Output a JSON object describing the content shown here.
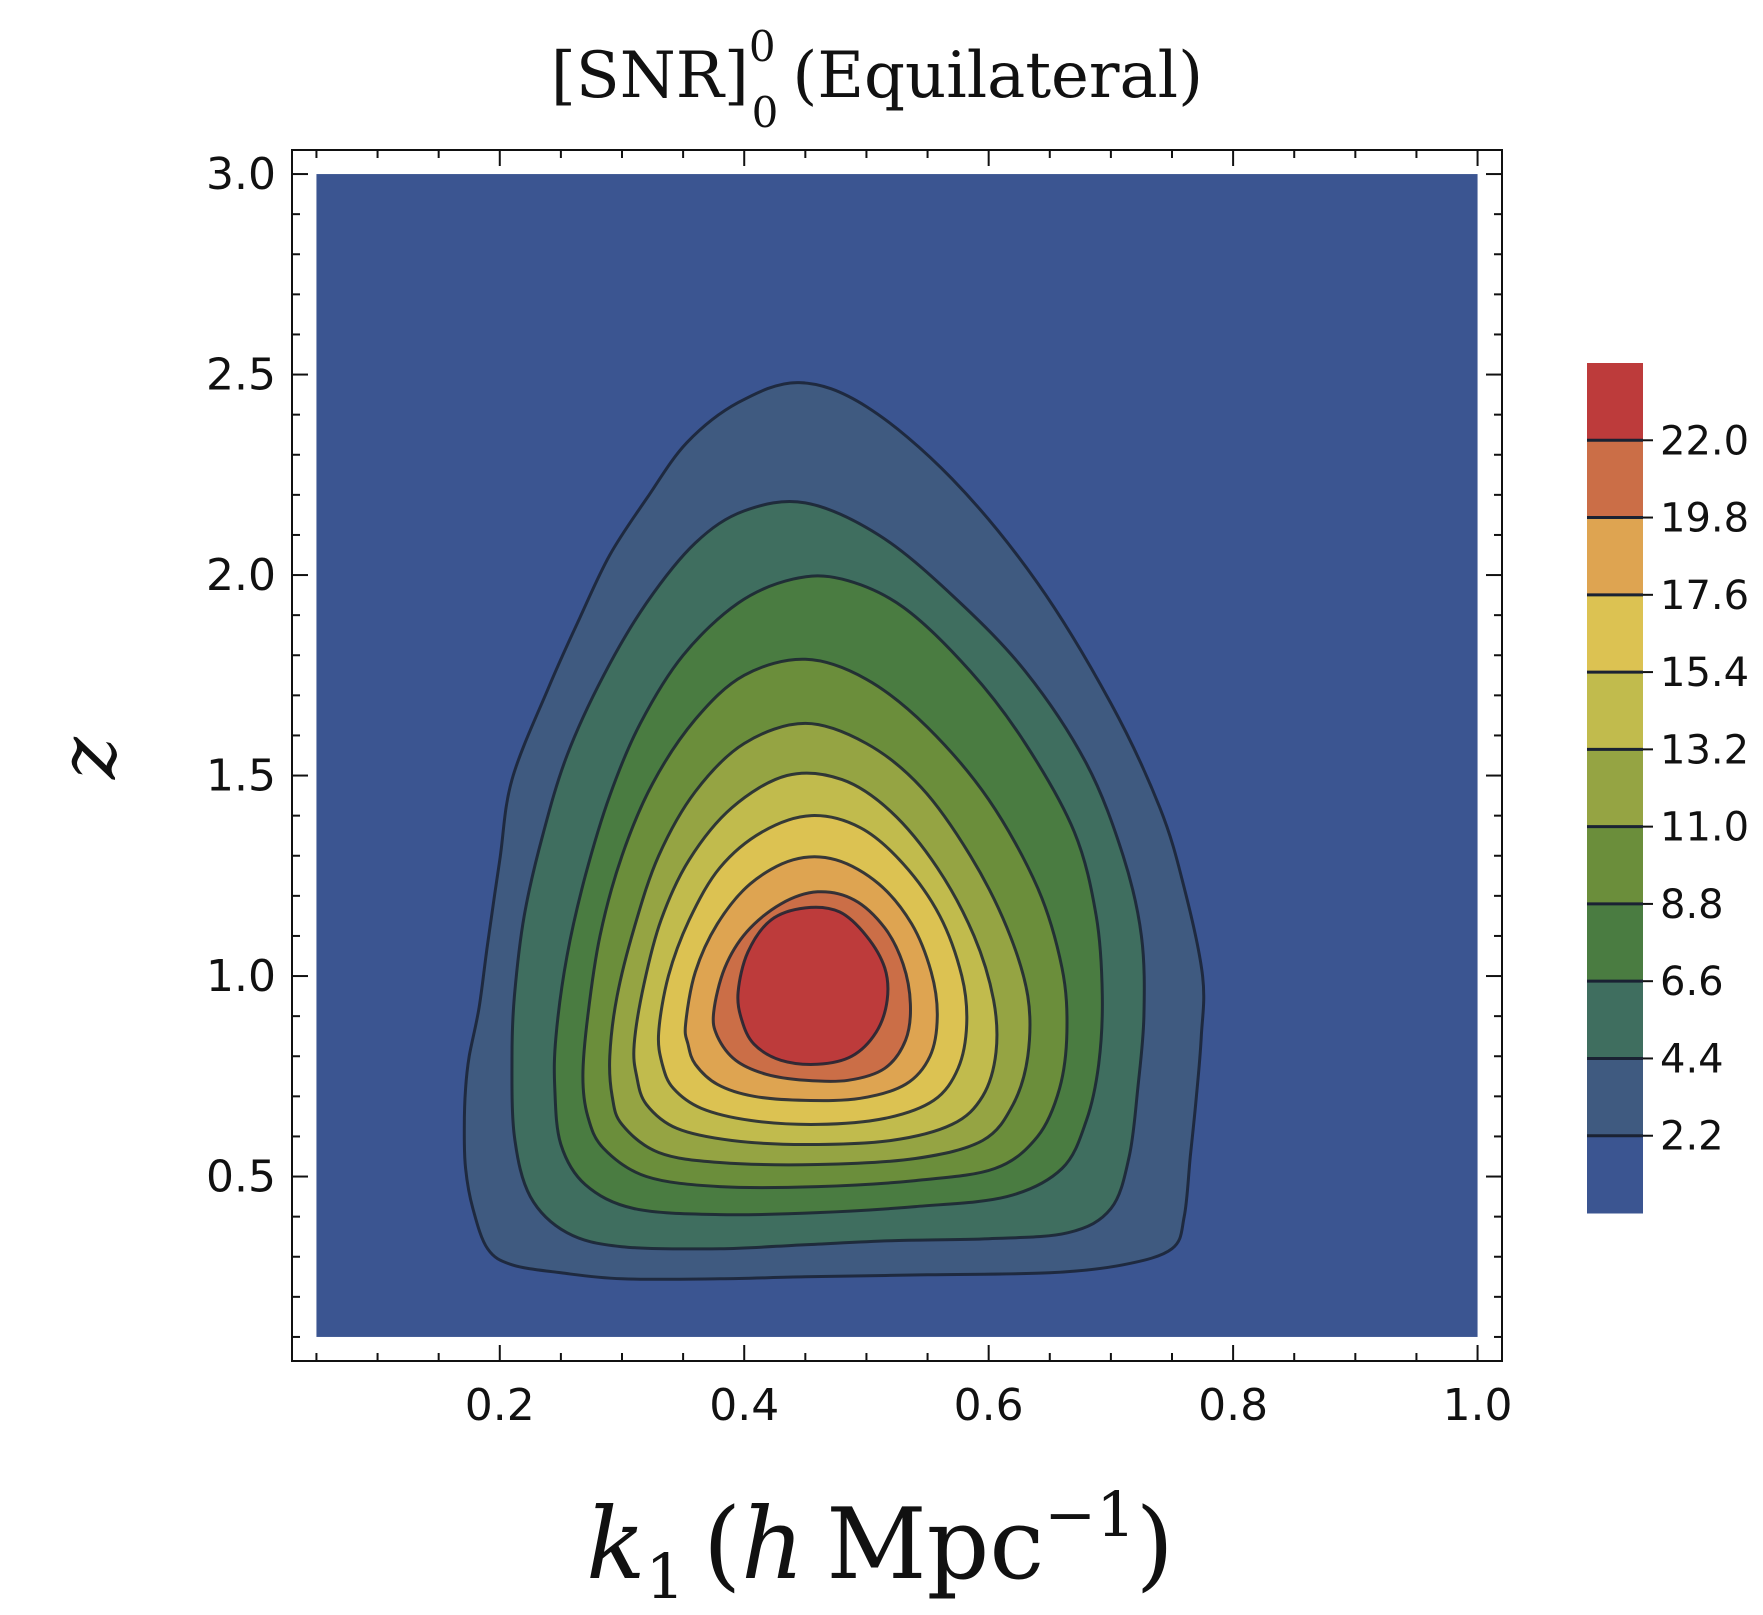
{
  "chart_data": {
    "type": "contour",
    "title": "[SNR]⁰₀ (Equilateral)",
    "title_main": "[SNR]",
    "title_sup": "0",
    "title_sub": "0",
    "title_rest": "(Equilateral)",
    "xlabel": "k₁ (h Mpc⁻¹)",
    "xlabel_base": "k",
    "xlabel_sub": "1",
    "xlabel_open": "(",
    "xlabel_h": "h",
    "xlabel_unit": "Mpc",
    "xlabel_sup": "−1",
    "xlabel_close": ")",
    "ylabel": "z",
    "xlim": [
      0.03,
      1.02
    ],
    "ylim": [
      0.04,
      3.06
    ],
    "x_ticks": [
      0.2,
      0.4,
      0.6,
      0.8,
      1.0
    ],
    "x_tick_labels": [
      "0.2",
      "0.4",
      "0.6",
      "0.8",
      "1.0"
    ],
    "y_ticks": [
      0.5,
      1.0,
      1.5,
      2.0,
      2.5,
      3.0
    ],
    "y_tick_labels": [
      "0.5",
      "1.0",
      "1.5",
      "2.0",
      "2.5",
      "3.0"
    ],
    "data_extent": {
      "x": [
        0.05,
        1.0
      ],
      "y": [
        0.1,
        3.0
      ]
    },
    "peak": {
      "k1": 0.49,
      "z": 1.01,
      "max_snr": 23.5
    },
    "contour_levels": [
      2.2,
      4.4,
      6.6,
      8.8,
      11.0,
      13.2,
      15.4,
      17.6,
      19.8,
      22.0
    ],
    "colorbar_tick_labels": [
      "2.2",
      "4.4",
      "6.6",
      "8.8",
      "11.0",
      "13.2",
      "15.4",
      "17.6",
      "19.8",
      "22.0"
    ],
    "fill_colors": [
      "#3b5591",
      "#3f5a80",
      "#3f6e5f",
      "#4a7c41",
      "#6b8e3b",
      "#95a443",
      "#c1bb4d",
      "#dcc252",
      "#dea451",
      "#cb6e47",
      "#bd3b3b"
    ],
    "line_color": "#1a2233",
    "grid": false,
    "legend": "colorbar-right",
    "contours": [
      {
        "level": 2.2,
        "points": [
          [
            0.171,
            0.62
          ],
          [
            0.172,
            0.72
          ],
          [
            0.175,
            0.8
          ],
          [
            0.183,
            0.92
          ],
          [
            0.19,
            1.08
          ],
          [
            0.2,
            1.29
          ],
          [
            0.21,
            1.49
          ],
          [
            0.24,
            1.72
          ],
          [
            0.265,
            1.89
          ],
          [
            0.29,
            2.05
          ],
          [
            0.32,
            2.19
          ],
          [
            0.353,
            2.33
          ],
          [
            0.395,
            2.43
          ],
          [
            0.445,
            2.48
          ],
          [
            0.5,
            2.42
          ],
          [
            0.57,
            2.24
          ],
          [
            0.64,
            1.98
          ],
          [
            0.7,
            1.68
          ],
          [
            0.74,
            1.42
          ],
          [
            0.76,
            1.22
          ],
          [
            0.775,
            1.0
          ],
          [
            0.774,
            0.85
          ],
          [
            0.77,
            0.7
          ],
          [
            0.765,
            0.55
          ],
          [
            0.76,
            0.4
          ],
          [
            0.75,
            0.32
          ],
          [
            0.71,
            0.28
          ],
          [
            0.65,
            0.26
          ],
          [
            0.55,
            0.255
          ],
          [
            0.45,
            0.25
          ],
          [
            0.38,
            0.245
          ],
          [
            0.3,
            0.245
          ],
          [
            0.25,
            0.26
          ],
          [
            0.21,
            0.28
          ],
          [
            0.19,
            0.32
          ],
          [
            0.178,
            0.42
          ],
          [
            0.172,
            0.52
          ]
        ]
      },
      {
        "level": 4.4,
        "points": [
          [
            0.21,
            0.8
          ],
          [
            0.212,
            0.95
          ],
          [
            0.22,
            1.15
          ],
          [
            0.235,
            1.35
          ],
          [
            0.255,
            1.55
          ],
          [
            0.285,
            1.75
          ],
          [
            0.32,
            1.93
          ],
          [
            0.36,
            2.08
          ],
          [
            0.4,
            2.16
          ],
          [
            0.45,
            2.18
          ],
          [
            0.51,
            2.1
          ],
          [
            0.57,
            1.95
          ],
          [
            0.63,
            1.76
          ],
          [
            0.68,
            1.53
          ],
          [
            0.71,
            1.3
          ],
          [
            0.725,
            1.1
          ],
          [
            0.727,
            0.9
          ],
          [
            0.722,
            0.72
          ],
          [
            0.715,
            0.55
          ],
          [
            0.7,
            0.42
          ],
          [
            0.665,
            0.36
          ],
          [
            0.6,
            0.345
          ],
          [
            0.52,
            0.34
          ],
          [
            0.45,
            0.33
          ],
          [
            0.38,
            0.32
          ],
          [
            0.3,
            0.325
          ],
          [
            0.255,
            0.36
          ],
          [
            0.225,
            0.45
          ],
          [
            0.212,
            0.6
          ]
        ]
      },
      {
        "level": 6.6,
        "points": [
          [
            0.245,
            0.72
          ],
          [
            0.246,
            0.85
          ],
          [
            0.255,
            1.05
          ],
          [
            0.27,
            1.25
          ],
          [
            0.29,
            1.45
          ],
          [
            0.315,
            1.63
          ],
          [
            0.35,
            1.8
          ],
          [
            0.395,
            1.93
          ],
          [
            0.44,
            1.99
          ],
          [
            0.48,
            1.99
          ],
          [
            0.53,
            1.92
          ],
          [
            0.585,
            1.76
          ],
          [
            0.63,
            1.58
          ],
          [
            0.67,
            1.36
          ],
          [
            0.688,
            1.15
          ],
          [
            0.693,
            0.95
          ],
          [
            0.69,
            0.78
          ],
          [
            0.68,
            0.64
          ],
          [
            0.66,
            0.52
          ],
          [
            0.615,
            0.45
          ],
          [
            0.54,
            0.425
          ],
          [
            0.46,
            0.41
          ],
          [
            0.38,
            0.405
          ],
          [
            0.31,
            0.42
          ],
          [
            0.27,
            0.48
          ],
          [
            0.25,
            0.58
          ]
        ]
      },
      {
        "level": 8.8,
        "points": [
          [
            0.268,
            0.75
          ],
          [
            0.272,
            0.9
          ],
          [
            0.282,
            1.1
          ],
          [
            0.3,
            1.3
          ],
          [
            0.325,
            1.48
          ],
          [
            0.36,
            1.64
          ],
          [
            0.4,
            1.75
          ],
          [
            0.45,
            1.79
          ],
          [
            0.5,
            1.74
          ],
          [
            0.55,
            1.62
          ],
          [
            0.6,
            1.44
          ],
          [
            0.64,
            1.22
          ],
          [
            0.66,
            1.02
          ],
          [
            0.664,
            0.86
          ],
          [
            0.658,
            0.72
          ],
          [
            0.64,
            0.6
          ],
          [
            0.605,
            0.52
          ],
          [
            0.54,
            0.49
          ],
          [
            0.46,
            0.475
          ],
          [
            0.38,
            0.475
          ],
          [
            0.32,
            0.5
          ],
          [
            0.285,
            0.57
          ],
          [
            0.272,
            0.65
          ]
        ]
      },
      {
        "level": 11.0,
        "points": [
          [
            0.29,
            0.8
          ],
          [
            0.296,
            0.95
          ],
          [
            0.31,
            1.12
          ],
          [
            0.33,
            1.3
          ],
          [
            0.36,
            1.46
          ],
          [
            0.4,
            1.58
          ],
          [
            0.45,
            1.63
          ],
          [
            0.5,
            1.58
          ],
          [
            0.545,
            1.47
          ],
          [
            0.585,
            1.3
          ],
          [
            0.615,
            1.12
          ],
          [
            0.632,
            0.95
          ],
          [
            0.632,
            0.8
          ],
          [
            0.62,
            0.68
          ],
          [
            0.595,
            0.59
          ],
          [
            0.54,
            0.545
          ],
          [
            0.46,
            0.53
          ],
          [
            0.38,
            0.535
          ],
          [
            0.33,
            0.56
          ],
          [
            0.3,
            0.63
          ],
          [
            0.292,
            0.7
          ]
        ]
      },
      {
        "level": 13.2,
        "points": [
          [
            0.31,
            0.83
          ],
          [
            0.318,
            0.98
          ],
          [
            0.332,
            1.14
          ],
          [
            0.355,
            1.29
          ],
          [
            0.39,
            1.42
          ],
          [
            0.435,
            1.5
          ],
          [
            0.48,
            1.49
          ],
          [
            0.52,
            1.41
          ],
          [
            0.558,
            1.27
          ],
          [
            0.588,
            1.1
          ],
          [
            0.604,
            0.94
          ],
          [
            0.606,
            0.81
          ],
          [
            0.595,
            0.7
          ],
          [
            0.57,
            0.63
          ],
          [
            0.52,
            0.59
          ],
          [
            0.45,
            0.58
          ],
          [
            0.39,
            0.59
          ],
          [
            0.345,
            0.62
          ],
          [
            0.32,
            0.68
          ],
          [
            0.312,
            0.75
          ]
        ]
      },
      {
        "level": 15.4,
        "points": [
          [
            0.33,
            0.86
          ],
          [
            0.338,
            1.0
          ],
          [
            0.355,
            1.14
          ],
          [
            0.38,
            1.27
          ],
          [
            0.415,
            1.36
          ],
          [
            0.455,
            1.4
          ],
          [
            0.495,
            1.37
          ],
          [
            0.53,
            1.28
          ],
          [
            0.56,
            1.15
          ],
          [
            0.578,
            1.0
          ],
          [
            0.582,
            0.88
          ],
          [
            0.575,
            0.77
          ],
          [
            0.555,
            0.69
          ],
          [
            0.515,
            0.645
          ],
          [
            0.46,
            0.63
          ],
          [
            0.405,
            0.64
          ],
          [
            0.365,
            0.67
          ],
          [
            0.342,
            0.72
          ],
          [
            0.333,
            0.78
          ]
        ]
      },
      {
        "level": 17.6,
        "points": [
          [
            0.352,
            0.88
          ],
          [
            0.36,
            1.01
          ],
          [
            0.378,
            1.13
          ],
          [
            0.405,
            1.23
          ],
          [
            0.44,
            1.29
          ],
          [
            0.475,
            1.29
          ],
          [
            0.51,
            1.23
          ],
          [
            0.537,
            1.13
          ],
          [
            0.553,
            1.01
          ],
          [
            0.558,
            0.9
          ],
          [
            0.552,
            0.8
          ],
          [
            0.532,
            0.73
          ],
          [
            0.495,
            0.695
          ],
          [
            0.45,
            0.69
          ],
          [
            0.408,
            0.7
          ],
          [
            0.378,
            0.73
          ],
          [
            0.36,
            0.78
          ],
          [
            0.354,
            0.83
          ]
        ]
      },
      {
        "level": 19.8,
        "points": [
          [
            0.375,
            0.91
          ],
          [
            0.384,
            1.02
          ],
          [
            0.402,
            1.11
          ],
          [
            0.43,
            1.18
          ],
          [
            0.46,
            1.21
          ],
          [
            0.49,
            1.19
          ],
          [
            0.515,
            1.12
          ],
          [
            0.53,
            1.03
          ],
          [
            0.536,
            0.93
          ],
          [
            0.532,
            0.84
          ],
          [
            0.515,
            0.77
          ],
          [
            0.485,
            0.74
          ],
          [
            0.45,
            0.74
          ],
          [
            0.418,
            0.755
          ],
          [
            0.393,
            0.79
          ],
          [
            0.378,
            0.85
          ]
        ]
      },
      {
        "level": 22.0,
        "points": [
          [
            0.395,
            0.96
          ],
          [
            0.403,
            1.06
          ],
          [
            0.422,
            1.14
          ],
          [
            0.45,
            1.17
          ],
          [
            0.478,
            1.16
          ],
          [
            0.5,
            1.1
          ],
          [
            0.515,
            1.02
          ],
          [
            0.517,
            0.94
          ],
          [
            0.508,
            0.86
          ],
          [
            0.488,
            0.8
          ],
          [
            0.46,
            0.78
          ],
          [
            0.43,
            0.79
          ],
          [
            0.408,
            0.83
          ],
          [
            0.398,
            0.89
          ]
        ]
      }
    ]
  }
}
